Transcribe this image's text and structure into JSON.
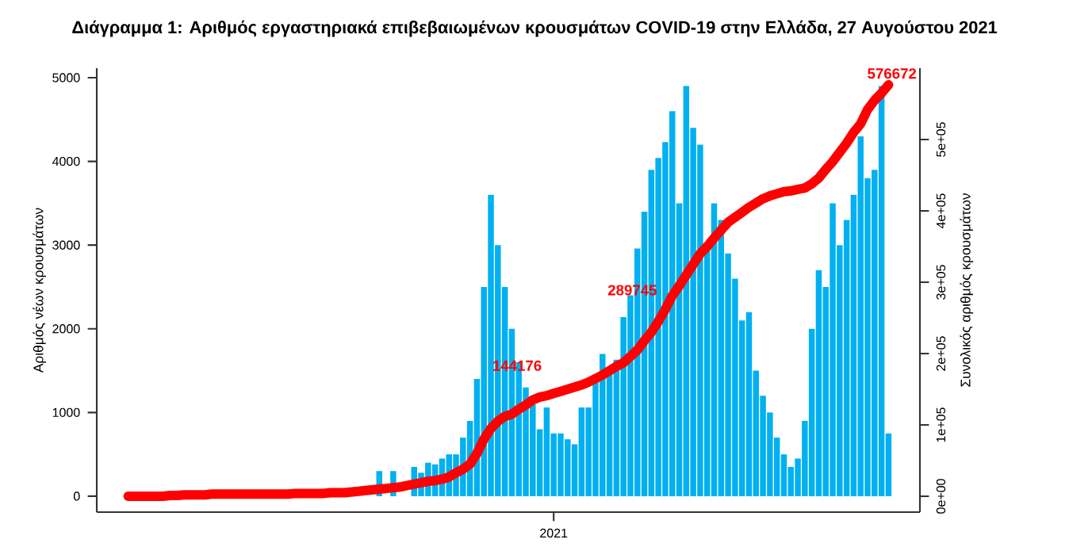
{
  "chart_data": {
    "type": "bar",
    "title": "Διάγραμμα 1: Αριθμός εργαστηριακά επιβεβαιωμένων κρουσμάτων COVID-19 στην Ελλάδα, 27 Αυγούστου 2021",
    "ylabel": "Αριθμός νέων κρουσμάτων",
    "y2label": "Συνολικός αριθμός κρουσμάτων",
    "categories": [
      null,
      null,
      null,
      null,
      null,
      null,
      null,
      null,
      null,
      null,
      null,
      null,
      null,
      null,
      null,
      null,
      null,
      null,
      null,
      null,
      null,
      null,
      null,
      null,
      null,
      null,
      null,
      null,
      null,
      null,
      null,
      null,
      null,
      null,
      null,
      null,
      null,
      null,
      null,
      null,
      null,
      null,
      null,
      null,
      null,
      null,
      null,
      null,
      null,
      null,
      null,
      null,
      null,
      null,
      null,
      null,
      null,
      null,
      null,
      null,
      null,
      "2021",
      null,
      null,
      null,
      null,
      null,
      null,
      null,
      null,
      null,
      null,
      null,
      null,
      null,
      null,
      null,
      null,
      null,
      null,
      null,
      null,
      null,
      null,
      null,
      null,
      null,
      null,
      null,
      null,
      null,
      null,
      null,
      null,
      null,
      null,
      null,
      null,
      null,
      null,
      null,
      null,
      null,
      null,
      null,
      null,
      null,
      null,
      null,
      null
    ],
    "series": [
      {
        "color": "#00b0f0",
        "values": [
          null,
          null,
          null,
          null,
          null,
          null,
          null,
          null,
          null,
          null,
          null,
          null,
          null,
          null,
          null,
          null,
          null,
          null,
          null,
          null,
          null,
          null,
          null,
          null,
          null,
          null,
          null,
          null,
          null,
          null,
          null,
          null,
          null,
          null,
          null,
          null,
          300,
          null,
          300,
          null,
          null,
          350,
          280,
          400,
          380,
          450,
          500,
          500,
          700,
          900,
          1400,
          2500,
          3600,
          3000,
          2500,
          2000,
          1600,
          1300,
          1100,
          800,
          1060,
          750,
          750,
          680,
          620,
          1060,
          1060,
          1380,
          1700,
          1500,
          1630,
          2140,
          2400,
          2960,
          3400,
          3900,
          4040,
          4230,
          4600,
          3500,
          4900,
          4400,
          4200,
          3000,
          3500,
          3300,
          2900,
          2600,
          2100,
          2200,
          1500,
          1200,
          1000,
          700,
          500,
          350,
          450,
          900,
          2000,
          2700,
          2500,
          3500,
          3000,
          3300,
          3600,
          4300,
          3800,
          3900,
          4900,
          750
        ]
      },
      {
        "type": "line",
        "axis": "y2",
        "color": "#ff0000",
        "values": [
          0,
          0,
          0,
          0,
          0,
          0,
          1000,
          1000,
          2000,
          2000,
          2000,
          2000,
          3000,
          3000,
          3000,
          3000,
          3000,
          3000,
          3000,
          3000,
          3000,
          3000,
          3000,
          3000,
          4000,
          4000,
          4000,
          4000,
          4000,
          5000,
          5000,
          5000,
          6000,
          7000,
          8000,
          9000,
          10000,
          11000,
          12000,
          13000,
          15000,
          17000,
          19000,
          21000,
          22000,
          24000,
          27000,
          33000,
          38000,
          45000,
          60000,
          80000,
          95000,
          105000,
          112000,
          115000,
          122000,
          128000,
          135000,
          139000,
          141000,
          144176,
          147000,
          150000,
          153000,
          156000,
          160000,
          165000,
          170000,
          176000,
          182000,
          187000,
          196000,
          205000,
          218000,
          230000,
          245000,
          262000,
          281000,
          295000,
          310000,
          325000,
          340000,
          350000,
          362000,
          373000,
          384000,
          391000,
          398000,
          405000,
          411000,
          417000,
          421000,
          424000,
          427000,
          428000,
          430000,
          432000,
          438000,
          446000,
          458000,
          469000,
          482000,
          495000,
          510000,
          522000,
          542000,
          555000,
          565000,
          576672
        ]
      }
    ],
    "ylim": [
      -190,
      5114
    ],
    "yticks": [
      {
        "value": 0,
        "label": "0"
      },
      {
        "value": 1000,
        "label": "1000"
      },
      {
        "value": 2000,
        "label": "2000"
      },
      {
        "value": 3000,
        "label": "3000"
      },
      {
        "value": 4000,
        "label": "4000"
      },
      {
        "value": 5000,
        "label": "5000"
      }
    ],
    "y2lim": [
      -22200,
      600000
    ],
    "y2ticks": [
      {
        "value": 0,
        "label": "0e+00"
      },
      {
        "value": 100000,
        "label": "1e+05"
      },
      {
        "value": 200000,
        "label": "2e+05"
      },
      {
        "value": 300000,
        "label": "3e+05"
      },
      {
        "value": 400000,
        "label": "4e+05"
      },
      {
        "value": 500000,
        "label": "5e+05"
      }
    ],
    "annotations": [
      "144176",
      "289745",
      "576672"
    ]
  }
}
